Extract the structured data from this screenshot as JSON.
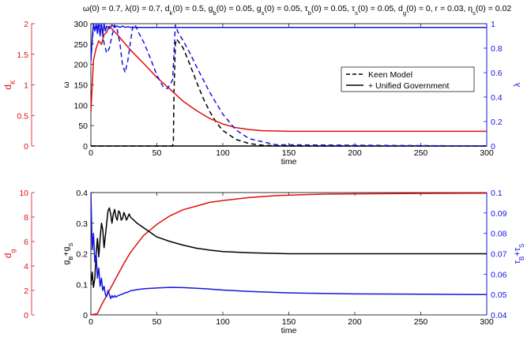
{
  "colors": {
    "axis_black": "#000000",
    "red": "#e01010",
    "blue": "#1515e0",
    "dashed_blue": "#1a1aff"
  },
  "chart_data": [
    {
      "type": "line",
      "title": "ω(0) = 0.7, λ(0) = 0.7, d_k(0) = 0.5, g_b(0) = 0.05, g_s(0) = 0.05, τ_b(0) = 0.05, τ_s(0) = 0.05, d_g(0) = 0, r = 0.03, η_s(0) = 0.02",
      "xlabel": "time",
      "xlim": [
        0,
        300
      ],
      "xticks": [
        0,
        50,
        100,
        150,
        200,
        250,
        300
      ],
      "axes": {
        "left_outer": {
          "label": "d_K",
          "ylim": [
            0,
            2
          ],
          "ticks": [
            0,
            0.5,
            1,
            1.5,
            2
          ],
          "tick_labels": [
            "0",
            "0.5",
            "1",
            "1.5",
            "2"
          ],
          "color": "red"
        },
        "left_inner": {
          "label": "ω",
          "ylim": [
            0,
            300
          ],
          "ticks": [
            0,
            50,
            100,
            150,
            200,
            250,
            300
          ],
          "tick_labels": [
            "0",
            "50",
            "100",
            "150",
            "200",
            "250",
            "300"
          ],
          "color": "black"
        },
        "right": {
          "label": "λ",
          "ylim": [
            0,
            1
          ],
          "ticks": [
            0,
            0.2,
            0.4,
            0.6,
            0.8,
            1
          ],
          "tick_labels": [
            "0",
            "0.2",
            "0.4",
            "0.6",
            "0.8",
            "1"
          ],
          "color": "blue"
        }
      },
      "legend": {
        "placement": "upper-right",
        "entries": [
          {
            "label": "Keen Model",
            "style": "dashed"
          },
          {
            "label": "+ Unified Government",
            "style": "solid"
          }
        ]
      },
      "series": [
        {
          "axis": "left_inner",
          "color": "black",
          "style": "dashed",
          "x": [
            0,
            2,
            62,
            62.5,
            63,
            64,
            65,
            70,
            75,
            80,
            85,
            90,
            95,
            100,
            110,
            120,
            130,
            140,
            150,
            300
          ],
          "y": [
            0,
            0,
            0,
            10,
            130,
            250,
            262,
            240,
            200,
            158,
            118,
            85,
            58,
            38,
            16,
            6,
            2,
            0.5,
            0,
            0
          ]
        },
        {
          "axis": "left_inner",
          "color": "black",
          "style": "solid",
          "x": [
            0,
            300
          ],
          "y": [
            0,
            0
          ]
        },
        {
          "axis": "left_outer",
          "color": "red",
          "style": "solid",
          "x": [
            0,
            2,
            4,
            6,
            8,
            10,
            12,
            14,
            20,
            30,
            40,
            50,
            60,
            70,
            80,
            90,
            100,
            110,
            120,
            130,
            150,
            200,
            300
          ],
          "y": [
            0.55,
            1.4,
            1.6,
            1.72,
            1.66,
            1.82,
            1.86,
            1.96,
            1.82,
            1.57,
            1.35,
            1.12,
            0.93,
            0.73,
            0.58,
            0.45,
            0.36,
            0.3,
            0.27,
            0.25,
            0.24,
            0.24,
            0.24
          ]
        },
        {
          "axis": "right",
          "color": "blue",
          "style": "dashed",
          "x": [
            0,
            2,
            4,
            6,
            8,
            10,
            12,
            14,
            16,
            18,
            20,
            22,
            24,
            26,
            28,
            30,
            32,
            34,
            36,
            40,
            45,
            50,
            55,
            58,
            62,
            64,
            66,
            70,
            75,
            80,
            90,
            100,
            110,
            120,
            140,
            300
          ],
          "y": [
            0.7,
            0.98,
            0.95,
            1.0,
            0.97,
            0.84,
            0.76,
            0.8,
            0.9,
            0.99,
            0.95,
            0.84,
            0.66,
            0.6,
            0.7,
            0.85,
            0.99,
            0.98,
            0.93,
            0.85,
            0.72,
            0.58,
            0.48,
            0.47,
            0.54,
            0.99,
            0.93,
            0.86,
            0.76,
            0.65,
            0.44,
            0.26,
            0.13,
            0.06,
            0.01,
            0.0
          ]
        },
        {
          "axis": "right",
          "color": "blue",
          "style": "solid",
          "x": [
            0,
            1,
            2,
            3,
            4,
            5,
            6,
            7,
            8,
            9,
            10,
            11,
            12,
            14,
            16,
            18,
            20,
            22,
            24,
            26,
            28,
            30,
            35,
            40,
            50,
            60,
            70,
            80,
            100,
            150,
            300
          ],
          "y": [
            0.7,
            0.88,
            1.0,
            0.94,
            1.0,
            0.92,
            1.0,
            0.9,
            1.0,
            0.91,
            1.0,
            0.94,
            0.98,
            0.96,
            0.99,
            0.97,
            0.98,
            0.97,
            0.98,
            0.97,
            0.975,
            0.97,
            0.97,
            0.97,
            0.97,
            0.97,
            0.97,
            0.97,
            0.97,
            0.97,
            0.97
          ]
        }
      ]
    },
    {
      "type": "line",
      "xlabel": "time",
      "xlim": [
        0,
        300
      ],
      "xticks": [
        0,
        50,
        100,
        150,
        200,
        250,
        300
      ],
      "axes": {
        "left_outer": {
          "label": "d_g",
          "ylim": [
            0,
            10
          ],
          "ticks": [
            0,
            2,
            4,
            6,
            8,
            10
          ],
          "tick_labels": [
            "0",
            "2",
            "4",
            "6",
            "8",
            "10"
          ],
          "color": "red"
        },
        "left_inner": {
          "label": "g_B+g_S",
          "ylim": [
            0,
            0.4
          ],
          "ticks": [
            0,
            0.1,
            0.2,
            0.3,
            0.4
          ],
          "tick_labels": [
            "0",
            "0.1",
            "0.2",
            "0.3",
            "0.4"
          ],
          "color": "black"
        },
        "right": {
          "label": "τ_B+τ_S",
          "ylim": [
            0.04,
            0.1
          ],
          "ticks": [
            0.04,
            0.05,
            0.06,
            0.07,
            0.08,
            0.09,
            0.1
          ],
          "tick_labels": [
            "0.04",
            "0.05",
            "0.06",
            "0.07",
            "0.08",
            "0.09",
            "0.1"
          ],
          "color": "blue"
        }
      },
      "series": [
        {
          "axis": "left_outer",
          "color": "red",
          "style": "solid",
          "x": [
            0,
            5,
            8,
            10,
            15,
            20,
            25,
            30,
            35,
            40,
            50,
            60,
            70,
            80,
            90,
            100,
            120,
            140,
            160,
            180,
            200,
            250,
            300
          ],
          "y": [
            0,
            0.1,
            0.8,
            1.2,
            2.2,
            3.2,
            4.2,
            5.1,
            5.8,
            6.5,
            7.4,
            8.1,
            8.6,
            8.9,
            9.2,
            9.35,
            9.6,
            9.75,
            9.82,
            9.88,
            9.9,
            9.93,
            9.95
          ]
        },
        {
          "axis": "left_inner",
          "color": "black",
          "style": "solid",
          "x": [
            0,
            1,
            2,
            3,
            4,
            5,
            6,
            7,
            8,
            9,
            10,
            11,
            12,
            13,
            14,
            15,
            16,
            17,
            18,
            19,
            20,
            21,
            22,
            23,
            24,
            25,
            26,
            27,
            28,
            29,
            30,
            35,
            40,
            45,
            50,
            60,
            70,
            80,
            90,
            100,
            120,
            150,
            300
          ],
          "y": [
            0.1,
            0.14,
            0.09,
            0.12,
            0.2,
            0.25,
            0.19,
            0.25,
            0.3,
            0.28,
            0.22,
            0.26,
            0.3,
            0.34,
            0.35,
            0.33,
            0.3,
            0.33,
            0.345,
            0.32,
            0.31,
            0.34,
            0.335,
            0.31,
            0.315,
            0.335,
            0.325,
            0.31,
            0.32,
            0.33,
            0.32,
            0.3,
            0.285,
            0.27,
            0.255,
            0.24,
            0.228,
            0.218,
            0.212,
            0.207,
            0.203,
            0.2,
            0.2
          ]
        },
        {
          "axis": "right",
          "color": "blue",
          "style": "solid",
          "x": [
            0,
            1,
            2,
            3,
            4,
            5,
            6,
            7,
            8,
            9,
            10,
            11,
            12,
            13,
            14,
            15,
            16,
            17,
            18,
            19,
            20,
            22,
            24,
            26,
            28,
            30,
            35,
            40,
            50,
            60,
            70,
            80,
            90,
            100,
            120,
            150,
            200,
            300
          ],
          "y": [
            0.1,
            0.072,
            0.08,
            0.066,
            0.07,
            0.058,
            0.063,
            0.054,
            0.058,
            0.052,
            0.054,
            0.05,
            0.049,
            0.052,
            0.05,
            0.048,
            0.0495,
            0.0485,
            0.0495,
            0.0487,
            0.0492,
            0.0498,
            0.0502,
            0.0508,
            0.0512,
            0.0518,
            0.0524,
            0.0528,
            0.0532,
            0.0535,
            0.0534,
            0.0531,
            0.0527,
            0.0522,
            0.0515,
            0.0508,
            0.0503,
            0.05
          ]
        }
      ]
    }
  ]
}
